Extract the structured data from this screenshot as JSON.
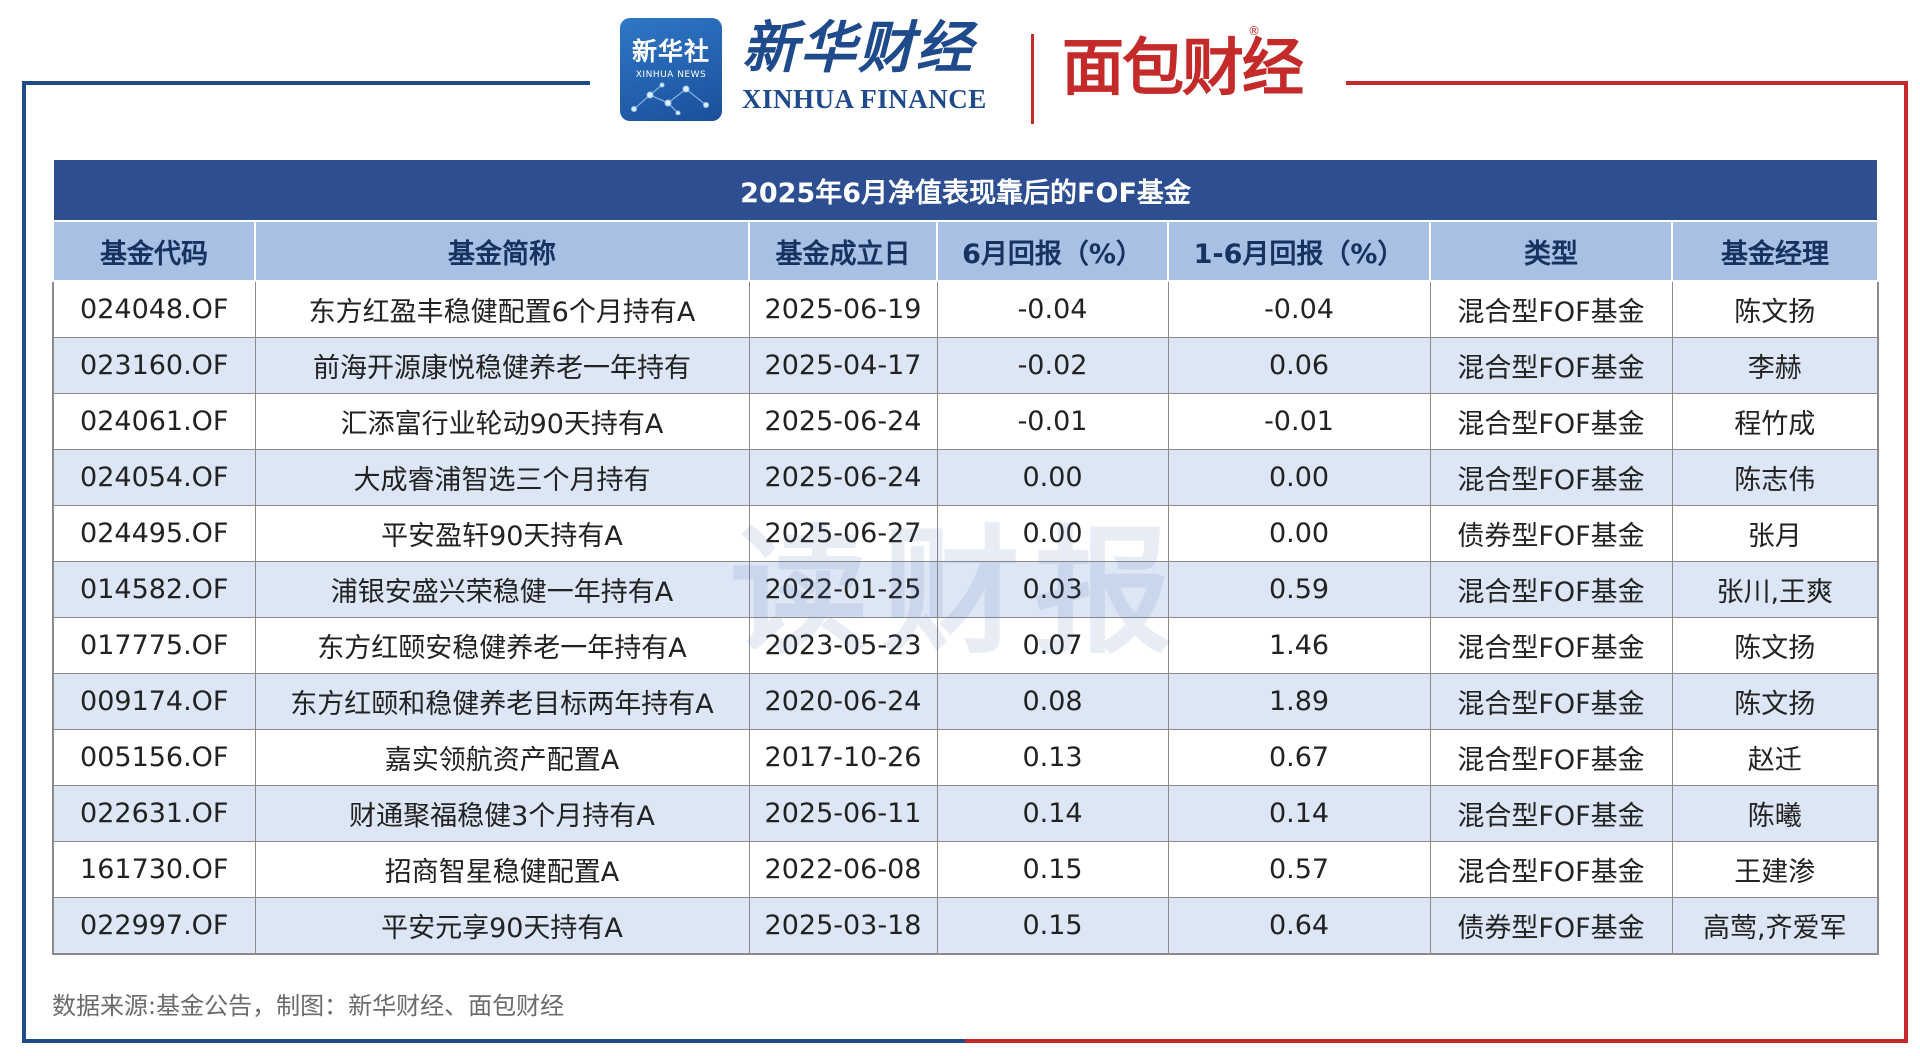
{
  "header": {
    "xinhua_news_cn": "新华社",
    "xinhua_news_en": "XINHUA NEWS",
    "xinhua_finance_cn": "新华财经",
    "xinhua_finance_en": "XINHUA FINANCE",
    "mianbao_cn": "面包财经",
    "registered_mark": "®"
  },
  "chart_data": {
    "type": "table",
    "title": "2025年6月净值表现靠后的FOF基金",
    "columns": [
      "基金代码",
      "基金简称",
      "基金成立日",
      "6月回报（%）",
      "1-6月回报（%）",
      "类型",
      "基金经理"
    ],
    "rows": [
      [
        "024048.OF",
        "东方红盈丰稳健配置6个月持有A",
        "2025-06-19",
        "-0.04",
        "-0.04",
        "混合型FOF基金",
        "陈文扬"
      ],
      [
        "023160.OF",
        "前海开源康悦稳健养老一年持有",
        "2025-04-17",
        "-0.02",
        "0.06",
        "混合型FOF基金",
        "李赫"
      ],
      [
        "024061.OF",
        "汇添富行业轮动90天持有A",
        "2025-06-24",
        "-0.01",
        "-0.01",
        "混合型FOF基金",
        "程竹成"
      ],
      [
        "024054.OF",
        "大成睿浦智选三个月持有",
        "2025-06-24",
        "0.00",
        "0.00",
        "混合型FOF基金",
        "陈志伟"
      ],
      [
        "024495.OF",
        "平安盈轩90天持有A",
        "2025-06-27",
        "0.00",
        "0.00",
        "债券型FOF基金",
        "张月"
      ],
      [
        "014582.OF",
        "浦银安盛兴荣稳健一年持有A",
        "2022-01-25",
        "0.03",
        "0.59",
        "混合型FOF基金",
        "张川,王爽"
      ],
      [
        "017775.OF",
        "东方红颐安稳健养老一年持有A",
        "2023-05-23",
        "0.07",
        "1.46",
        "混合型FOF基金",
        "陈文扬"
      ],
      [
        "009174.OF",
        "东方红颐和稳健养老目标两年持有A",
        "2020-06-24",
        "0.08",
        "1.89",
        "混合型FOF基金",
        "陈文扬"
      ],
      [
        "005156.OF",
        "嘉实领航资产配置A",
        "2017-10-26",
        "0.13",
        "0.67",
        "混合型FOF基金",
        "赵迁"
      ],
      [
        "022631.OF",
        "财通聚福稳健3个月持有A",
        "2025-06-11",
        "0.14",
        "0.14",
        "混合型FOF基金",
        "陈曦"
      ],
      [
        "161730.OF",
        "招商智星稳健配置A",
        "2022-06-08",
        "0.15",
        "0.57",
        "混合型FOF基金",
        "王建渗"
      ],
      [
        "022997.OF",
        "平安元享90天持有A",
        "2025-03-18",
        "0.15",
        "0.64",
        "债券型FOF基金",
        "高莺,齐爱军"
      ]
    ]
  },
  "watermark": "读财报",
  "source": "数据来源:基金公告，制图：新华财经、面包财经",
  "colors": {
    "title_bg": "#2d4f91",
    "header_bg": "#a7c0e4",
    "stripe_bg": "#dde6f5",
    "frame_blue": "#1f4a8c",
    "frame_red": "#c52a2a"
  }
}
